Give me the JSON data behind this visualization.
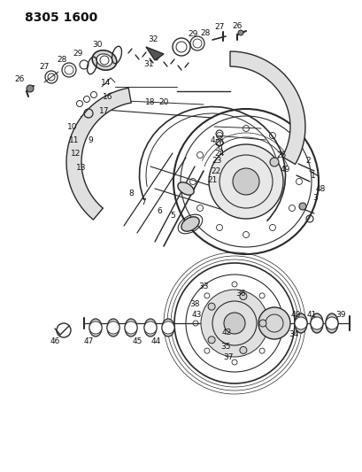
{
  "title": "8305 1600",
  "bg_color": "#ffffff",
  "line_color": "#2a2a2a",
  "label_color": "#111111",
  "title_fontsize": 10,
  "label_fontsize": 6.5,
  "figsize": [
    4.1,
    5.33
  ],
  "dpi": 100
}
